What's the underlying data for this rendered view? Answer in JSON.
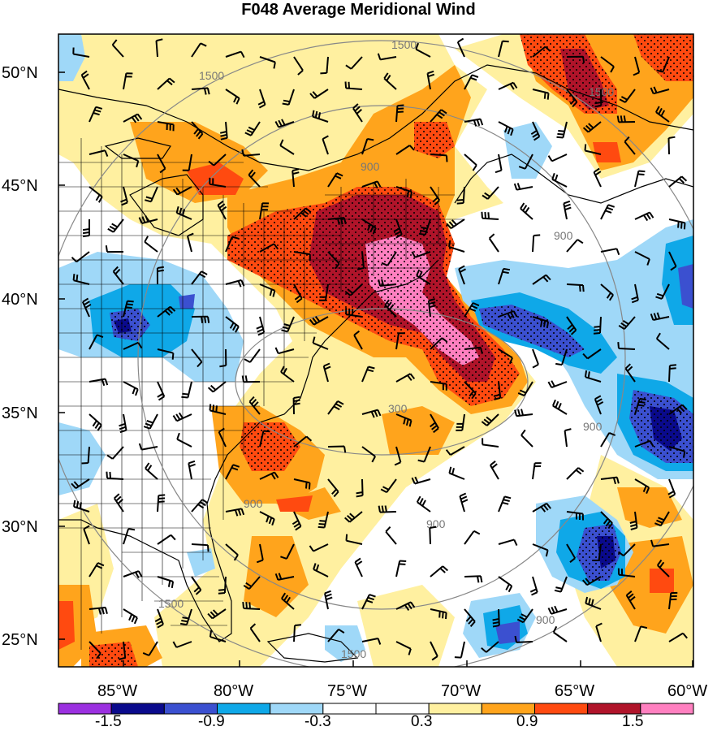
{
  "title": "F048 Average Meridional Wind",
  "lat_labels": [
    "50°N",
    "45°N",
    "40°N",
    "35°N",
    "30°N",
    "25°N"
  ],
  "lon_labels": [
    "85°W",
    "80°W",
    "75°W",
    "70°W",
    "65°W",
    "60°W"
  ],
  "colorbar": {
    "labels": [
      "-1.5",
      "-0.9",
      "-0.3",
      "0.3",
      "0.9",
      "1.5"
    ],
    "colors": [
      "#9b30e0",
      "#0a0a8c",
      "#3b50d0",
      "#0fa8e8",
      "#9fd8f8",
      "#ffffff",
      "#ffffff",
      "#fff0a0",
      "#ffa41c",
      "#ff4a10",
      "#b0142a",
      "#ff80c0"
    ]
  },
  "contour_labels": [
    "1500",
    "1500",
    "1500",
    "900",
    "900",
    "900",
    "900",
    "900",
    "300",
    "1500",
    "1500",
    "900"
  ],
  "colors": {
    "light_yellow": "#fff0a0",
    "orange": "#ffa41c",
    "red_orange": "#ff4a10",
    "dark_red": "#b0142a",
    "pink": "#ff80c0",
    "light_blue": "#9fd8f8",
    "cyan": "#0fa8e8",
    "blue": "#3b50d0",
    "navy": "#0a0a8c"
  }
}
